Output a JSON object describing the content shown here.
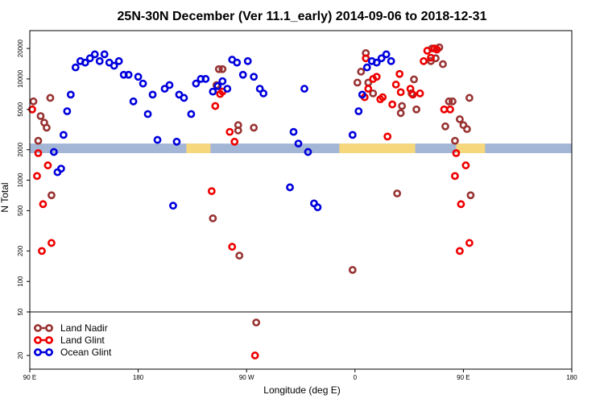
{
  "chart_data": {
    "type": "scatter",
    "title": "25N-30N December (Ver 11.1_early)   2014-09-06 to 2018-12-31",
    "xlabel": "Longitude (deg E)",
    "ylabel": "N Total",
    "yscale": "log",
    "xlim": [
      90,
      540
    ],
    "ylim_main": [
      50,
      30000
    ],
    "ylim_lower": [
      15,
      50
    ],
    "x_ticks": [
      {
        "value": 90,
        "label": "90 E"
      },
      {
        "value": 180,
        "label": "180"
      },
      {
        "value": 270,
        "label": "90 W"
      },
      {
        "value": 360,
        "label": "0"
      },
      {
        "value": 450,
        "label": "90 E"
      },
      {
        "value": 540,
        "label": "180"
      }
    ],
    "y_ticks_main": [
      50,
      100,
      200,
      500,
      1000,
      2000,
      5000,
      10000,
      20000
    ],
    "y_ticks_lower": [
      20,
      50
    ],
    "band": {
      "y_range": [
        1850,
        2300
      ],
      "colors": {
        "ocean": "#a3b6d6",
        "land": "#f7d77c"
      },
      "land_ranges": [
        [
          220,
          240
        ],
        [
          347,
          410
        ],
        [
          444,
          468
        ]
      ]
    },
    "series": [
      {
        "name": "Land Nadir",
        "color": "#993333",
        "points": [
          [
            93,
            6000
          ],
          [
            97,
            2450
          ],
          [
            99,
            4300
          ],
          [
            102,
            3700
          ],
          [
            104,
            3300
          ],
          [
            107,
            6500
          ],
          [
            108,
            710
          ],
          [
            245,
            8700
          ],
          [
            247,
            12500
          ],
          [
            250,
            12500
          ],
          [
            242,
            420
          ],
          [
            263,
            3100
          ],
          [
            263,
            3500
          ],
          [
            264,
            180
          ],
          [
            276,
            3300
          ],
          [
            278,
            40
          ],
          [
            358,
            130
          ],
          [
            362,
            9200
          ],
          [
            365,
            11800
          ],
          [
            369,
            18000
          ],
          [
            371,
            9200
          ],
          [
            375,
            7200
          ],
          [
            395,
            740
          ],
          [
            398,
            4600
          ],
          [
            399,
            5400
          ],
          [
            407,
            7200
          ],
          [
            409,
            9900
          ],
          [
            411,
            5000
          ],
          [
            423,
            15000
          ],
          [
            424,
            20000
          ],
          [
            427,
            16000
          ],
          [
            430,
            20500
          ],
          [
            433,
            14000
          ],
          [
            435,
            3400
          ],
          [
            438,
            6000
          ],
          [
            441,
            6000
          ],
          [
            443,
            2450
          ],
          [
            447,
            4000
          ],
          [
            450,
            3500
          ],
          [
            453,
            3200
          ],
          [
            455,
            6500
          ],
          [
            456,
            710
          ]
        ]
      },
      {
        "name": "Land Glint",
        "color": "#ee0000",
        "points": [
          [
            92,
            5000
          ],
          [
            96,
            1100
          ],
          [
            97,
            1850
          ],
          [
            100,
            200
          ],
          [
            101,
            580
          ],
          [
            105,
            1400
          ],
          [
            108,
            240
          ],
          [
            241,
            780
          ],
          [
            244,
            5400
          ],
          [
            248,
            7100
          ],
          [
            250,
            7500
          ],
          [
            256,
            3000
          ],
          [
            258,
            220
          ],
          [
            260,
            2400
          ],
          [
            277,
            20
          ],
          [
            368,
            6600
          ],
          [
            369,
            16000
          ],
          [
            371,
            8000
          ],
          [
            375,
            10000
          ],
          [
            378,
            10500
          ],
          [
            381,
            6300
          ],
          [
            383,
            6600
          ],
          [
            387,
            2700
          ],
          [
            391,
            5600
          ],
          [
            394,
            8800
          ],
          [
            397,
            11200
          ],
          [
            398,
            7400
          ],
          [
            406,
            8000
          ],
          [
            408,
            7000
          ],
          [
            414,
            7200
          ],
          [
            417,
            15000
          ],
          [
            420,
            19000
          ],
          [
            423,
            16200
          ],
          [
            426,
            20000
          ],
          [
            428,
            19500
          ],
          [
            434,
            5000
          ],
          [
            439,
            5000
          ],
          [
            443,
            1100
          ],
          [
            444,
            1850
          ],
          [
            447,
            200
          ],
          [
            448,
            580
          ],
          [
            452,
            1400
          ],
          [
            455,
            240
          ]
        ]
      },
      {
        "name": "Ocean Glint",
        "color": "#0000dd",
        "points": [
          [
            110,
            1900
          ],
          [
            113,
            1200
          ],
          [
            116,
            1300
          ],
          [
            118,
            2800
          ],
          [
            121,
            4800
          ],
          [
            124,
            7000
          ],
          [
            128,
            13000
          ],
          [
            132,
            15000
          ],
          [
            136,
            14500
          ],
          [
            140,
            16000
          ],
          [
            144,
            17500
          ],
          [
            148,
            15000
          ],
          [
            152,
            17500
          ],
          [
            156,
            14500
          ],
          [
            160,
            13500
          ],
          [
            164,
            15000
          ],
          [
            168,
            11000
          ],
          [
            172,
            11000
          ],
          [
            176,
            6000
          ],
          [
            180,
            10500
          ],
          [
            184,
            9000
          ],
          [
            188,
            4500
          ],
          [
            192,
            7000
          ],
          [
            196,
            2500
          ],
          [
            202,
            8000
          ],
          [
            206,
            8700
          ],
          [
            209,
            560
          ],
          [
            212,
            2400
          ],
          [
            214,
            7000
          ],
          [
            218,
            6500
          ],
          [
            224,
            4500
          ],
          [
            228,
            9000
          ],
          [
            232,
            10000
          ],
          [
            236,
            10000
          ],
          [
            242,
            7500
          ],
          [
            246,
            8500
          ],
          [
            250,
            9500
          ],
          [
            254,
            8000
          ],
          [
            258,
            15500
          ],
          [
            262,
            14500
          ],
          [
            267,
            11000
          ],
          [
            271,
            15000
          ],
          [
            276,
            10500
          ],
          [
            281,
            8000
          ],
          [
            284,
            7200
          ],
          [
            306,
            850
          ],
          [
            309,
            3000
          ],
          [
            313,
            2300
          ],
          [
            318,
            8000
          ],
          [
            321,
            1900
          ],
          [
            326,
            590
          ],
          [
            329,
            540
          ],
          [
            358,
            2800
          ],
          [
            363,
            4800
          ],
          [
            366,
            7000
          ],
          [
            370,
            13000
          ],
          [
            374,
            15000
          ],
          [
            378,
            14500
          ],
          [
            382,
            16000
          ],
          [
            386,
            17500
          ],
          [
            390,
            15000
          ]
        ]
      }
    ],
    "legend": {
      "position": "lower-left",
      "entries": [
        "Land Nadir",
        "Land Glint",
        "Ocean Glint"
      ]
    }
  }
}
